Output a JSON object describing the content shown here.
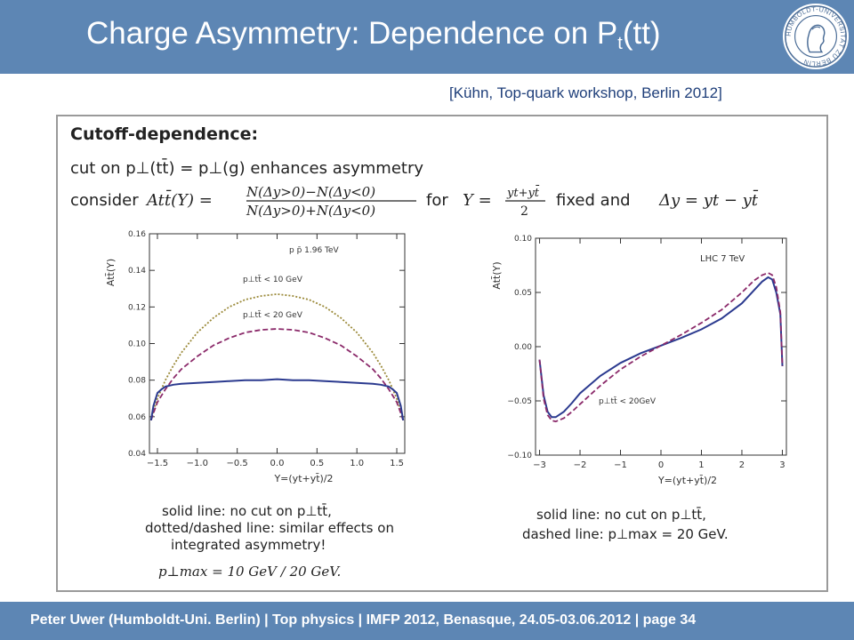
{
  "header": {
    "title_main": "Charge Asymmetry: Dependence on P",
    "title_sub": "t",
    "title_tail": "(tt)",
    "seal_text": "HUMBOLDT-UNIVERSITÄT ZU BERLIN"
  },
  "citation": "[Kühn, Top-quark workshop, Berlin 2012]",
  "slide": {
    "heading": "Cutoff-dependence:",
    "line1": "cut on p⊥(tt̄) = p⊥(g) enhances asymmetry",
    "line2_consider": "consider",
    "line2_A": "Att̄(Y) =",
    "line2_num": "N(Δy>0)−N(Δy<0)",
    "line2_den": "N(Δy>0)+N(Δy<0)",
    "line2_for": "for",
    "line2_Y": "Y =",
    "line2_frac_num": "yt+yt̄",
    "line2_frac_den": "2",
    "line2_fixed": "fixed and",
    "line2_dy": "Δy = yt − yt̄",
    "left_caption": [
      "solid line: no cut on p⊥tt̄,",
      "dotted/dashed line: similar effects on",
      "integrated asymmetry!"
    ],
    "left_formula": "p⊥max = 10 GeV / 20 GeV.",
    "right_caption": [
      "solid line: no cut on p⊥tt̄,",
      "dashed line: p⊥max = 20 GeV."
    ]
  },
  "chart_data": [
    {
      "type": "line",
      "xlabel": "Y=(yt+yt̄)/2",
      "ylabel": "Att̄(Y)",
      "xlim": [
        -1.6,
        1.6
      ],
      "ylim": [
        0.04,
        0.16
      ],
      "xticks": [
        -1.5,
        -1.0,
        -0.5,
        0.0,
        0.5,
        1.0,
        1.5
      ],
      "yticks": [
        0.04,
        0.06,
        0.08,
        0.1,
        0.12,
        0.14,
        0.16
      ],
      "xtick_labels": [
        "−1.5",
        "−1.0",
        "−0.5",
        "0.0",
        "0.5",
        "1.0",
        "1.5"
      ],
      "ytick_labels": [
        "0.04",
        "0.06",
        "0.08",
        "0.10",
        "0.12",
        "0.14",
        "0.16"
      ],
      "annotations": [
        "p p̄  1.96 TeV",
        "p⊥tt̄ < 10 GeV",
        "p⊥tt̄ < 20 GeV"
      ],
      "colors": {
        "solid": "#2b3a8f",
        "dashed": "#8b2a6a",
        "dotted": "#9b8a3a"
      },
      "series": [
        {
          "style": "dotted",
          "x": [
            -1.58,
            -1.55,
            -1.5,
            -1.4,
            -1.3,
            -1.2,
            -1.0,
            -0.8,
            -0.6,
            -0.4,
            -0.2,
            0.0,
            0.2,
            0.4,
            0.6,
            0.8,
            1.0,
            1.2,
            1.3,
            1.4,
            1.5,
            1.55,
            1.58
          ],
          "y": [
            0.058,
            0.063,
            0.07,
            0.08,
            0.088,
            0.095,
            0.106,
            0.114,
            0.12,
            0.124,
            0.126,
            0.127,
            0.126,
            0.124,
            0.12,
            0.114,
            0.106,
            0.095,
            0.088,
            0.08,
            0.07,
            0.063,
            0.058
          ]
        },
        {
          "style": "dashed",
          "x": [
            -1.58,
            -1.55,
            -1.5,
            -1.4,
            -1.3,
            -1.2,
            -1.0,
            -0.8,
            -0.6,
            -0.4,
            -0.2,
            0.0,
            0.2,
            0.4,
            0.6,
            0.8,
            1.0,
            1.2,
            1.3,
            1.4,
            1.5,
            1.55,
            1.58
          ],
          "y": [
            0.058,
            0.062,
            0.068,
            0.075,
            0.081,
            0.086,
            0.093,
            0.099,
            0.103,
            0.106,
            0.1075,
            0.108,
            0.1075,
            0.106,
            0.103,
            0.099,
            0.093,
            0.086,
            0.081,
            0.075,
            0.068,
            0.062,
            0.058
          ]
        },
        {
          "style": "solid",
          "x": [
            -1.58,
            -1.55,
            -1.5,
            -1.45,
            -1.4,
            -1.3,
            -1.2,
            -1.0,
            -0.8,
            -0.6,
            -0.4,
            -0.2,
            0.0,
            0.2,
            0.4,
            0.6,
            0.8,
            1.0,
            1.2,
            1.3,
            1.4,
            1.45,
            1.5,
            1.55,
            1.58
          ],
          "y": [
            0.058,
            0.066,
            0.073,
            0.075,
            0.0765,
            0.0775,
            0.078,
            0.0785,
            0.079,
            0.0795,
            0.08,
            0.08,
            0.0805,
            0.08,
            0.08,
            0.0795,
            0.079,
            0.0785,
            0.078,
            0.0775,
            0.0765,
            0.075,
            0.073,
            0.066,
            0.058
          ]
        }
      ]
    },
    {
      "type": "line",
      "xlabel": "Y=(yt+yt̄)/2",
      "ylabel": "Att̄(Y)",
      "xlim": [
        -3.1,
        3.1
      ],
      "ylim": [
        -0.1,
        0.1
      ],
      "xticks": [
        -3,
        -2,
        -1,
        0,
        1,
        2,
        3
      ],
      "yticks": [
        -0.1,
        -0.05,
        0.0,
        0.05,
        0.1
      ],
      "xtick_labels": [
        "−3",
        "−2",
        "−1",
        "0",
        "1",
        "2",
        "3"
      ],
      "ytick_labels": [
        "−0.10",
        "−0.05",
        "0.00",
        "0.05",
        "0.10"
      ],
      "annotations": [
        "LHC  7 TeV",
        "p⊥tt̄ < 20GeV"
      ],
      "colors": {
        "solid": "#2b3a8f",
        "dashed": "#8b2a6a"
      },
      "series": [
        {
          "style": "solid",
          "x": [
            -3.0,
            -2.9,
            -2.8,
            -2.7,
            -2.6,
            -2.4,
            -2.2,
            -2.0,
            -1.5,
            -1.0,
            -0.5,
            0.0,
            0.5,
            1.0,
            1.5,
            2.0,
            2.3,
            2.5,
            2.65,
            2.75,
            2.85,
            2.95,
            3.0
          ],
          "y": [
            -0.012,
            -0.045,
            -0.06,
            -0.065,
            -0.065,
            -0.06,
            -0.052,
            -0.043,
            -0.027,
            -0.015,
            -0.006,
            0.001,
            0.008,
            0.016,
            0.026,
            0.04,
            0.052,
            0.06,
            0.064,
            0.062,
            0.05,
            0.03,
            -0.018
          ]
        },
        {
          "style": "dashed",
          "x": [
            -3.0,
            -2.9,
            -2.8,
            -2.7,
            -2.6,
            -2.4,
            -2.2,
            -2.0,
            -1.5,
            -1.0,
            -0.5,
            0.0,
            0.5,
            1.0,
            1.5,
            2.0,
            2.3,
            2.5,
            2.65,
            2.75,
            2.85,
            2.95,
            3.0
          ],
          "y": [
            -0.012,
            -0.048,
            -0.063,
            -0.068,
            -0.069,
            -0.066,
            -0.06,
            -0.053,
            -0.036,
            -0.021,
            -0.009,
            0.001,
            0.011,
            0.022,
            0.034,
            0.05,
            0.061,
            0.066,
            0.068,
            0.066,
            0.055,
            0.032,
            -0.018
          ]
        }
      ]
    }
  ],
  "footer": {
    "text": "Peter Uwer  (Humboldt-Uni. Berlin)  |  Top physics   |  IMFP 2012, Benasque, 24.05-03.06.2012  |  page 34"
  }
}
